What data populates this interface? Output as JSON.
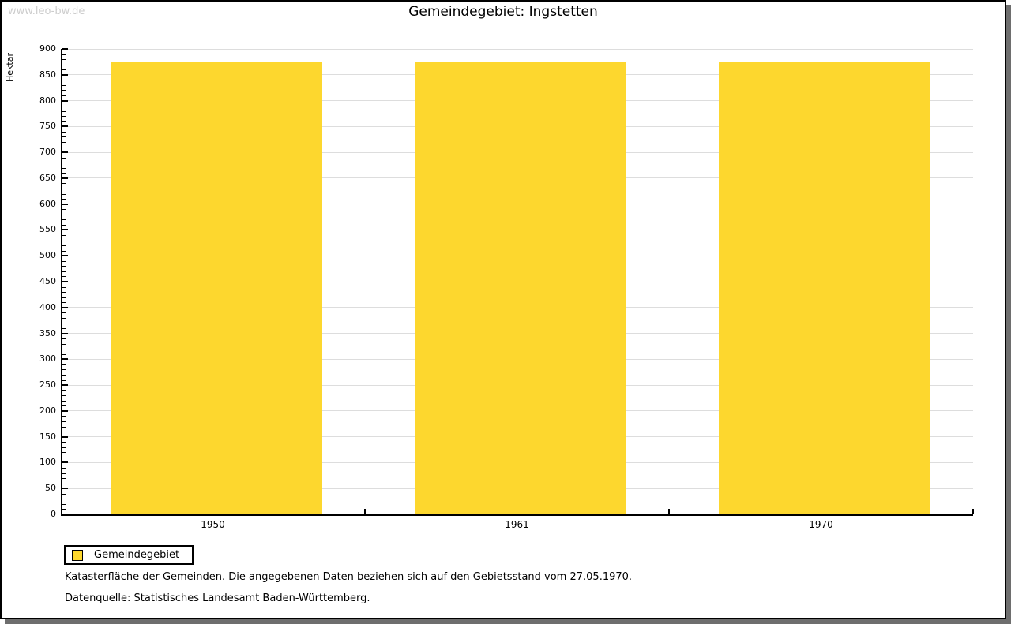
{
  "watermark": "www.leo-bw.de",
  "header": {
    "title": "Gemeindegebiet: Ingstetten"
  },
  "chart_data": {
    "type": "bar",
    "title": "Gemeindegebiet: Ingstetten",
    "categories": [
      "1950",
      "1961",
      "1970"
    ],
    "series": [
      {
        "name": "Gemeindegebiet",
        "values": [
          876,
          876,
          876
        ],
        "color": "#FDD72E"
      }
    ],
    "xlabel": "",
    "ylabel": "Hektar",
    "ylim": [
      0,
      900
    ],
    "y_major_step": 50,
    "y_minor_step": 10,
    "grid": "horizontal-major-on",
    "legend_position": "bottom-left"
  },
  "legend": {
    "label": "Gemeindegebiet",
    "swatch_color": "#FDD72E"
  },
  "footnotes": {
    "line1": "Katasterfläche der Gemeinden. Die angegebenen Daten beziehen sich auf den Gebietsstand vom 27.05.1970.",
    "line2": "Datenquelle: Statistisches Landesamt Baden-Württemberg."
  },
  "colors": {
    "bar": "#FDD72E",
    "gridline": "#dddddd",
    "axis": "#000000",
    "watermark": "#cccccc",
    "frame_shadow": "#6e6e6e",
    "background": "#ffffff"
  }
}
